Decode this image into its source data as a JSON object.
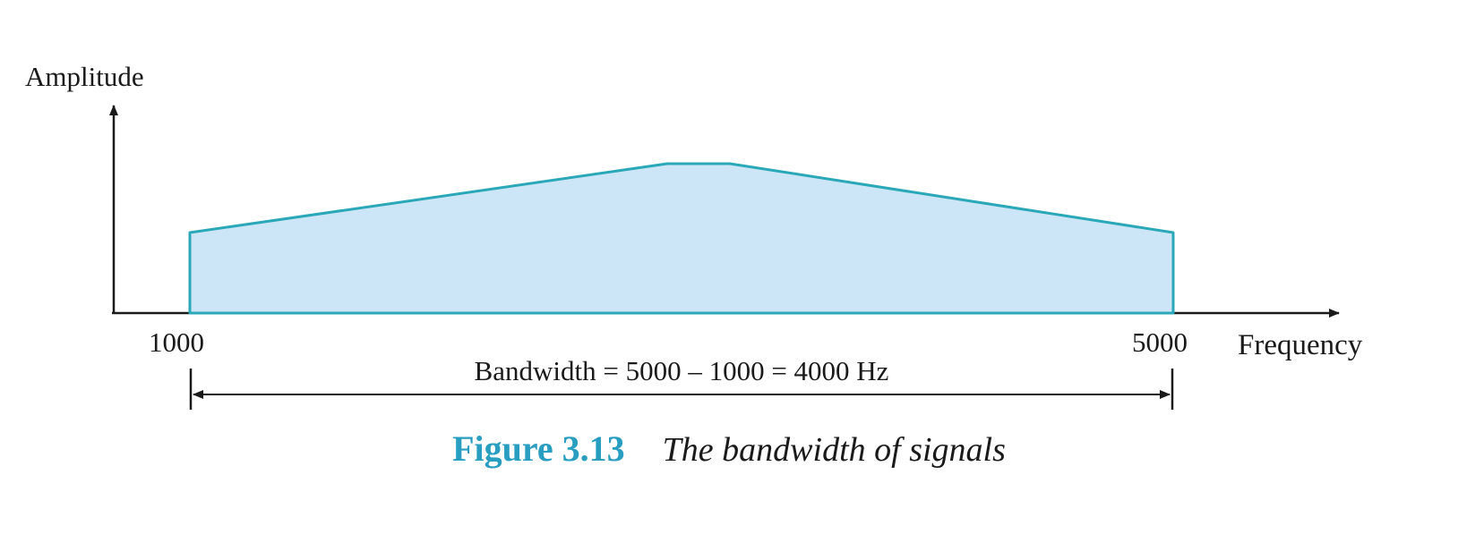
{
  "diagram": {
    "y_axis_label": "Amplitude",
    "x_axis_label": "Frequency",
    "low_frequency": "1000",
    "high_frequency": "5000",
    "bandwidth_label": "Bandwidth = 5000 – 1000 = 4000 Hz",
    "caption_number": "Figure 3.13",
    "caption_text": "The bandwidth of  signals"
  },
  "colors": {
    "fill": "#cde6f7",
    "outline": "#2aa8b8",
    "caption_accent": "#2a9ec0",
    "ink": "#1a1a1a"
  }
}
